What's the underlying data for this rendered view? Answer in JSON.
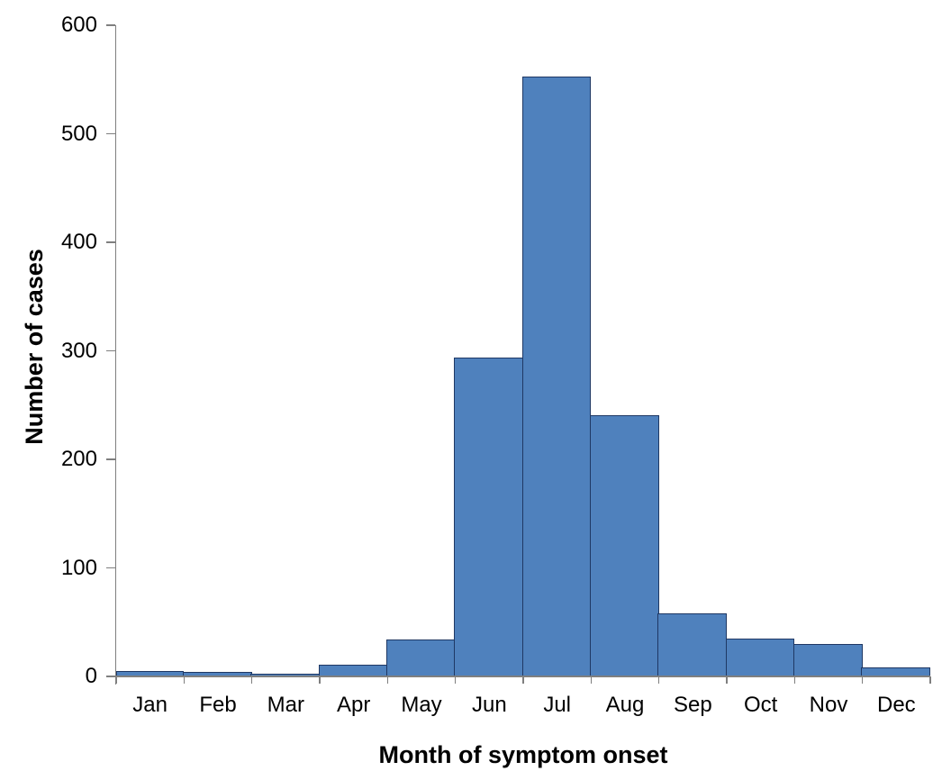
{
  "chart_data": {
    "type": "bar",
    "subtype": "histogram-epi-curve",
    "title": "",
    "categories": [
      "Jan",
      "Feb",
      "Mar",
      "Apr",
      "May",
      "Jun",
      "Jul",
      "Aug",
      "Sep",
      "Oct",
      "Nov",
      "Dec"
    ],
    "values": [
      5,
      4,
      2,
      11,
      34,
      294,
      553,
      241,
      58,
      35,
      30,
      8
    ],
    "xlabel": "Month of symptom onset",
    "ylabel": "Number of cases",
    "ylim": [
      0,
      600
    ],
    "yticks": [
      0,
      100,
      200,
      300,
      400,
      500,
      600
    ],
    "grid": false,
    "legend": "none",
    "bar_gap": 0,
    "colors": {
      "bar_fill": "#4f81bd",
      "bar_border": "#1f3864",
      "axis_line": "#7f7f7f",
      "text": "#000000",
      "background": "#ffffff"
    }
  }
}
